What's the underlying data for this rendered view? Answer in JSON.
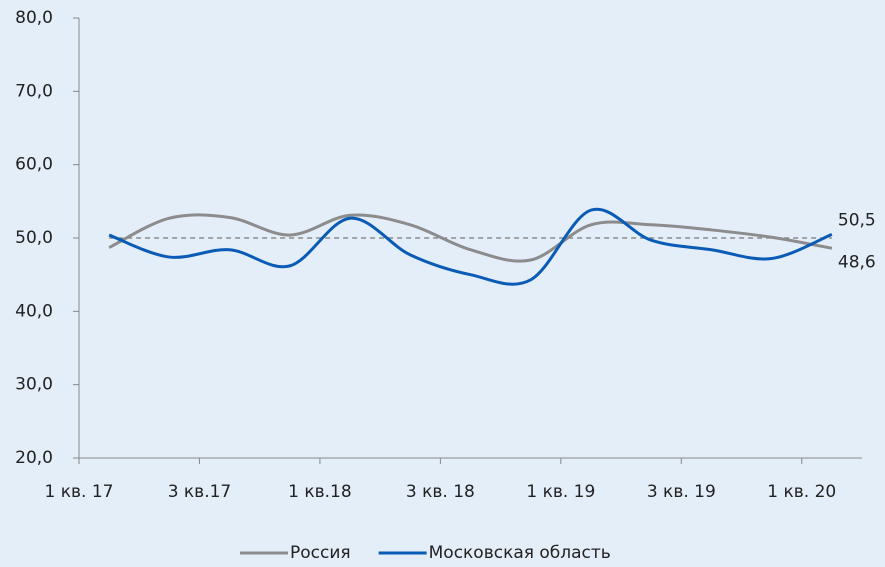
{
  "chart_data": {
    "type": "line",
    "categories": [
      "1 кв. 17",
      null,
      "3 кв.17",
      null,
      "1 кв.18",
      null,
      "3 кв. 18",
      null,
      "1 кв. 19",
      null,
      "3 кв. 19",
      null,
      "1 кв. 20"
    ],
    "series": [
      {
        "name": "Россия",
        "color": "#8c8c8c",
        "values": [
          48.7,
          52.7,
          52.8,
          50.4,
          53.1,
          51.8,
          48.4,
          47.0,
          51.8,
          51.8,
          51.1,
          50.1,
          48.6
        ],
        "value_labels": [
          null,
          null,
          null,
          null,
          null,
          null,
          null,
          null,
          null,
          null,
          null,
          null,
          "48,6"
        ]
      },
      {
        "name": "Московская область",
        "color": "#0a5bb5",
        "values": [
          50.4,
          47.4,
          48.4,
          46.2,
          52.7,
          47.7,
          45.0,
          44.3,
          53.8,
          49.7,
          48.4,
          47.2,
          50.5
        ],
        "value_labels": [
          null,
          null,
          null,
          null,
          null,
          null,
          null,
          null,
          null,
          null,
          null,
          null,
          "50,5"
        ]
      }
    ],
    "reference_line": 50,
    "ylim": [
      20,
      80
    ],
    "yticks": [
      {
        "value": 20,
        "label": "20,0"
      },
      {
        "value": 30,
        "label": "30,0"
      },
      {
        "value": 40,
        "label": "40,0"
      },
      {
        "value": 50,
        "label": "50,0"
      },
      {
        "value": 60,
        "label": "60,0"
      },
      {
        "value": 70,
        "label": "70,0"
      },
      {
        "value": 80,
        "label": "80,0"
      }
    ],
    "legend": "bottom"
  }
}
